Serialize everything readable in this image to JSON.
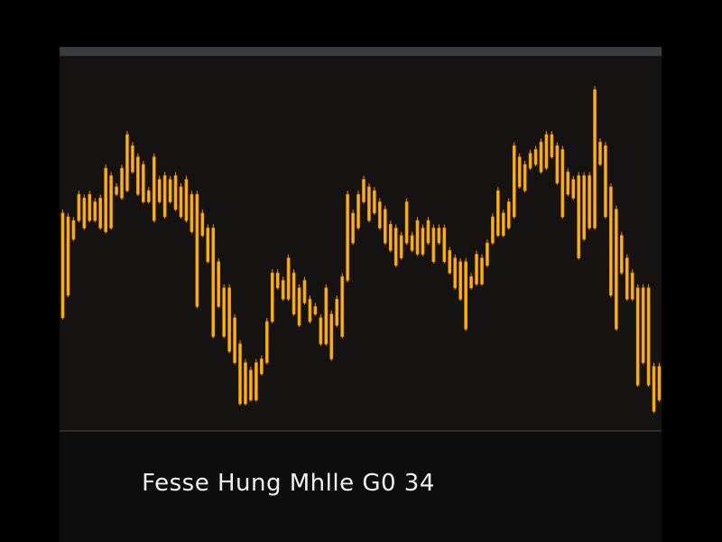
{
  "caption": "Fesse Hung Mhlle G0 34",
  "colors": {
    "background": "#141312",
    "bar": "#f5b800",
    "bar_edge": "#ff8c00",
    "header": "#3a3d3d",
    "text": "#f2f2f2"
  },
  "chart_data": {
    "type": "bar",
    "title": "",
    "xlabel": "",
    "ylabel": "",
    "ylim": [
      0,
      100
    ],
    "grid": false,
    "ranges": [
      [
        30,
        58
      ],
      [
        36,
        57
      ],
      [
        51,
        56
      ],
      [
        56,
        63
      ],
      [
        54,
        62
      ],
      [
        56,
        63
      ],
      [
        56,
        61
      ],
      [
        54,
        62
      ],
      [
        53,
        70
      ],
      [
        54,
        68
      ],
      [
        63,
        65
      ],
      [
        62,
        70
      ],
      [
        64,
        79
      ],
      [
        69,
        76
      ],
      [
        63,
        73
      ],
      [
        61,
        71
      ],
      [
        61,
        64
      ],
      [
        56,
        73
      ],
      [
        61,
        67
      ],
      [
        57,
        68
      ],
      [
        61,
        67
      ],
      [
        59,
        68
      ],
      [
        57,
        65
      ],
      [
        56,
        67
      ],
      [
        53,
        63
      ],
      [
        33,
        63
      ],
      [
        52,
        58
      ],
      [
        45,
        54
      ],
      [
        25,
        54
      ],
      [
        33,
        45
      ],
      [
        25,
        38
      ],
      [
        21,
        38
      ],
      [
        18,
        30
      ],
      [
        7,
        23
      ],
      [
        7,
        18
      ],
      [
        8,
        16
      ],
      [
        8,
        18
      ],
      [
        15,
        19
      ],
      [
        18,
        29
      ],
      [
        29,
        42
      ],
      [
        38,
        42
      ],
      [
        35,
        40
      ],
      [
        35,
        46
      ],
      [
        31,
        42
      ],
      [
        28,
        38
      ],
      [
        34,
        40
      ],
      [
        29,
        35
      ],
      [
        31,
        33
      ],
      [
        23,
        30
      ],
      [
        23,
        38
      ],
      [
        19,
        31
      ],
      [
        28,
        35
      ],
      [
        25,
        41
      ],
      [
        40,
        63
      ],
      [
        50,
        58
      ],
      [
        54,
        63
      ],
      [
        61,
        67
      ],
      [
        56,
        65
      ],
      [
        58,
        64
      ],
      [
        54,
        61
      ],
      [
        50,
        59
      ],
      [
        48,
        55
      ],
      [
        44,
        54
      ],
      [
        46,
        52
      ],
      [
        50,
        61
      ],
      [
        48,
        52
      ],
      [
        47,
        56
      ],
      [
        47,
        54
      ],
      [
        50,
        56
      ],
      [
        45,
        54
      ],
      [
        50,
        54
      ],
      [
        45,
        54
      ],
      [
        42,
        48
      ],
      [
        38,
        46
      ],
      [
        35,
        45
      ],
      [
        27,
        45
      ],
      [
        38,
        41
      ],
      [
        39,
        47
      ],
      [
        39,
        46
      ],
      [
        44,
        50
      ],
      [
        50,
        57
      ],
      [
        52,
        64
      ],
      [
        52,
        58
      ],
      [
        54,
        61
      ],
      [
        57,
        76
      ],
      [
        65,
        73
      ],
      [
        64,
        71
      ],
      [
        70,
        74
      ],
      [
        71,
        75
      ],
      [
        69,
        77
      ],
      [
        70,
        79
      ],
      [
        73,
        79
      ],
      [
        66,
        76
      ],
      [
        57,
        75
      ],
      [
        63,
        69
      ],
      [
        62,
        67
      ],
      [
        46,
        68
      ],
      [
        51,
        68
      ],
      [
        54,
        68
      ],
      [
        54,
        91
      ],
      [
        71,
        77
      ],
      [
        57,
        76
      ],
      [
        36,
        65
      ],
      [
        27,
        59
      ],
      [
        42,
        52
      ],
      [
        35,
        46
      ],
      [
        35,
        42
      ],
      [
        12,
        38
      ],
      [
        18,
        38
      ],
      [
        12,
        38
      ],
      [
        5,
        17
      ],
      [
        8,
        17
      ]
    ]
  }
}
